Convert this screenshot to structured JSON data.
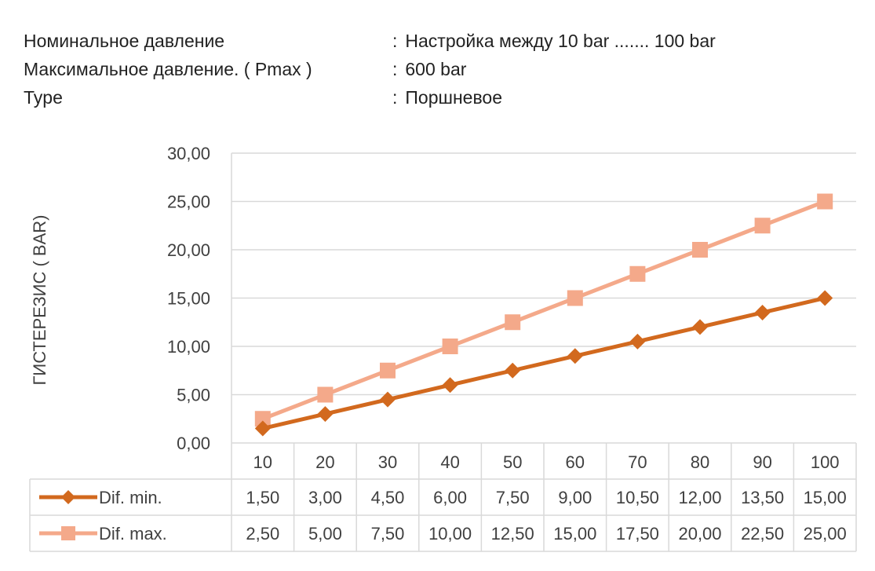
{
  "specs": [
    {
      "label": "Номинальное  давление",
      "value": "Настройка между 10 bar ....... 100 bar"
    },
    {
      "label": "Максимальное давление. ( Pmax )",
      "value": "600 bar"
    },
    {
      "label": "Type",
      "value": "Поршневое"
    }
  ],
  "colors": {
    "dif_min": "#D2691E",
    "dif_max": "#F4A98A",
    "grid": "#D9D9D9",
    "text": "#404040"
  },
  "chart_data": {
    "type": "line",
    "title": "",
    "xlabel": "",
    "ylabel": "ГИСТЕРЕЗИС ( BAR)",
    "ylim": [
      0,
      30
    ],
    "ytick_labels": [
      "0,00",
      "5,00",
      "10,00",
      "15,00",
      "20,00",
      "25,00",
      "30,00"
    ],
    "grid": true,
    "legend": "data-table",
    "categories": [
      "10",
      "20",
      "30",
      "40",
      "50",
      "60",
      "70",
      "80",
      "90",
      "100"
    ],
    "series": [
      {
        "name": "Dif. min.",
        "marker": "diamond",
        "values": [
          1.5,
          3.0,
          4.5,
          6.0,
          7.5,
          9.0,
          10.5,
          12.0,
          13.5,
          15.0
        ],
        "labels": [
          "1,50",
          "3,00",
          "4,50",
          "6,00",
          "7,50",
          "9,00",
          "10,50",
          "12,00",
          "13,50",
          "15,00"
        ]
      },
      {
        "name": "Dif. max.",
        "marker": "square",
        "values": [
          2.5,
          5.0,
          7.5,
          10.0,
          12.5,
          15.0,
          17.5,
          20.0,
          22.5,
          25.0
        ],
        "labels": [
          "2,50",
          "5,00",
          "7,50",
          "10,00",
          "12,50",
          "15,00",
          "17,50",
          "20,00",
          "22,50",
          "25,00"
        ]
      }
    ]
  }
}
